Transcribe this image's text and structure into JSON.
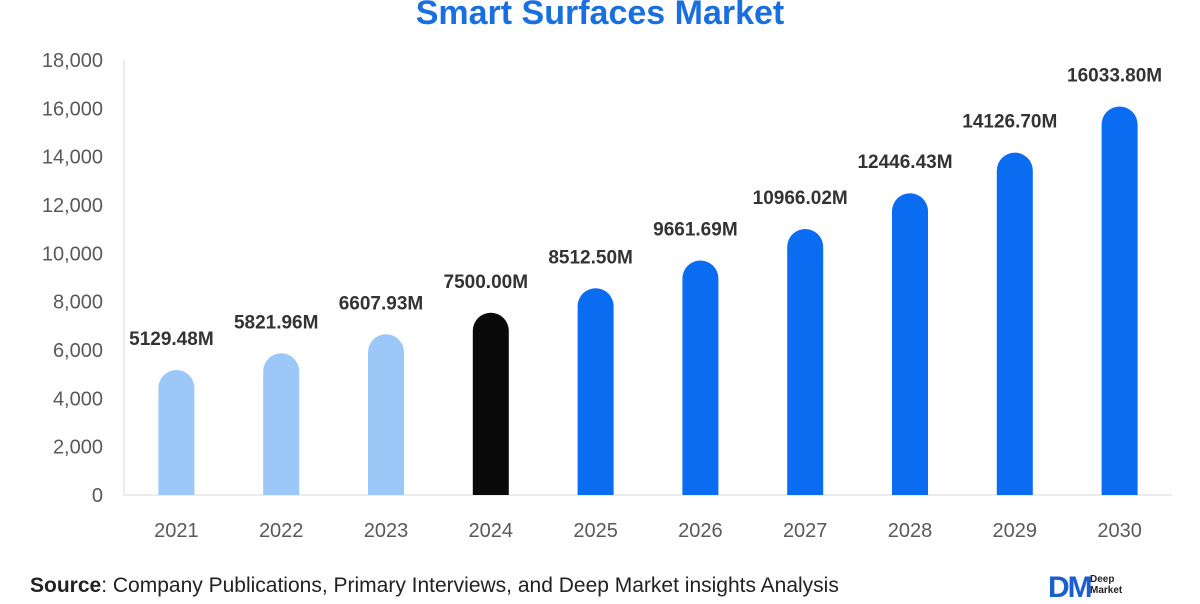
{
  "chart_data": {
    "type": "bar",
    "title": "Smart Surfaces Market",
    "categories": [
      "2021",
      "2022",
      "2023",
      "2024",
      "2025",
      "2026",
      "2027",
      "2028",
      "2029",
      "2030"
    ],
    "values": [
      5129.48,
      5821.96,
      6607.93,
      7500.0,
      8512.5,
      9661.69,
      10966.02,
      12446.43,
      14126.7,
      16033.8
    ],
    "data_labels": [
      "5129.48M",
      "5821.96M",
      "6607.93M",
      "7500.00M",
      "8512.50M",
      "9661.69M",
      "10966.02M",
      "12446.43M",
      "14126.70M",
      "16033.80M"
    ],
    "bar_colors": [
      "#9cc8f8",
      "#9cc8f8",
      "#9cc8f8",
      "#0a0a0a",
      "#0a6cf0",
      "#0a6cf0",
      "#0a6cf0",
      "#0a6cf0",
      "#0a6cf0",
      "#0a6cf0"
    ],
    "ylim": [
      0,
      18000
    ],
    "yticks": [
      0,
      2000,
      4000,
      6000,
      8000,
      10000,
      12000,
      14000,
      16000,
      18000
    ],
    "ytick_labels": [
      "0",
      "2,000",
      "4,000",
      "6,000",
      "8,000",
      "10,000",
      "12,000",
      "14,000",
      "16,000",
      "18,000"
    ],
    "xlabel": "",
    "ylabel": "",
    "grid": false,
    "legend": "none"
  },
  "source": {
    "label": "Source",
    "text": ": Company Publications, Primary Interviews, and Deep Market insights Analysis"
  },
  "logo": {
    "mark": "DM",
    "line1": "Deep",
    "line2": "Market"
  }
}
